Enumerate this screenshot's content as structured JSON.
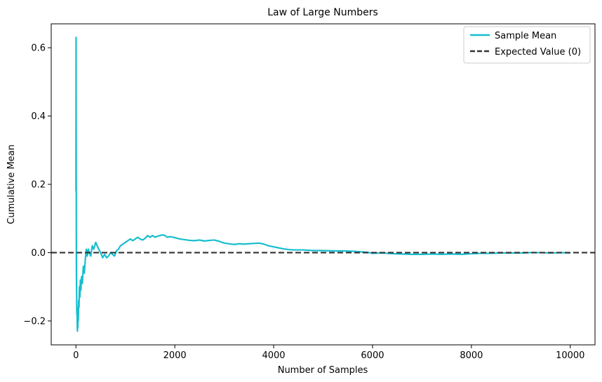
{
  "chart_data": {
    "type": "line",
    "title": "Law of Large Numbers",
    "xlabel": "Number of Samples",
    "ylabel": "Cumulative Mean",
    "xlim": [
      -500,
      10500
    ],
    "ylim": [
      -0.27,
      0.67
    ],
    "xticks": [
      0,
      2000,
      4000,
      6000,
      8000,
      10000
    ],
    "yticks": [
      -0.2,
      0.0,
      0.2,
      0.4,
      0.6
    ],
    "xtick_labels": [
      "0",
      "2000",
      "4000",
      "6000",
      "8000",
      "10000"
    ],
    "ytick_labels": [
      "−0.2",
      "0.0",
      "0.2",
      "0.4",
      "0.6"
    ],
    "grid": false,
    "legend_position": "top-right",
    "series": [
      {
        "name": "Sample Mean",
        "color": "#17becf",
        "style": "solid",
        "points": [
          [
            1,
            0.18
          ],
          [
            2,
            0.55
          ],
          [
            3,
            0.63
          ],
          [
            4,
            0.4
          ],
          [
            6,
            0.25
          ],
          [
            8,
            0.05
          ],
          [
            10,
            -0.05
          ],
          [
            14,
            -0.12
          ],
          [
            18,
            -0.18
          ],
          [
            22,
            -0.16
          ],
          [
            26,
            -0.21
          ],
          [
            30,
            -0.23
          ],
          [
            34,
            -0.19
          ],
          [
            38,
            -0.22
          ],
          [
            42,
            -0.17
          ],
          [
            48,
            -0.2
          ],
          [
            55,
            -0.14
          ],
          [
            62,
            -0.16
          ],
          [
            70,
            -0.1
          ],
          [
            80,
            -0.13
          ],
          [
            90,
            -0.08
          ],
          [
            100,
            -0.11
          ],
          [
            115,
            -0.07
          ],
          [
            130,
            -0.09
          ],
          [
            150,
            -0.04
          ],
          [
            170,
            -0.06
          ],
          [
            190,
            -0.02
          ],
          [
            210,
            0.01
          ],
          [
            230,
            -0.01
          ],
          [
            250,
            0.01
          ],
          [
            270,
            0.0
          ],
          [
            300,
            -0.01
          ],
          [
            330,
            0.02
          ],
          [
            360,
            0.01
          ],
          [
            400,
            0.03
          ],
          [
            430,
            0.02
          ],
          [
            460,
            0.01
          ],
          [
            500,
            0.0
          ],
          [
            540,
            -0.015
          ],
          [
            580,
            -0.005
          ],
          [
            620,
            -0.015
          ],
          [
            660,
            -0.01
          ],
          [
            700,
            0.0
          ],
          [
            740,
            -0.005
          ],
          [
            780,
            -0.01
          ],
          [
            820,
            0.005
          ],
          [
            860,
            0.01
          ],
          [
            900,
            0.02
          ],
          [
            950,
            0.025
          ],
          [
            1000,
            0.03
          ],
          [
            1050,
            0.035
          ],
          [
            1100,
            0.04
          ],
          [
            1150,
            0.035
          ],
          [
            1200,
            0.04
          ],
          [
            1250,
            0.045
          ],
          [
            1300,
            0.04
          ],
          [
            1350,
            0.037
          ],
          [
            1400,
            0.042
          ],
          [
            1450,
            0.05
          ],
          [
            1500,
            0.045
          ],
          [
            1550,
            0.05
          ],
          [
            1600,
            0.045
          ],
          [
            1650,
            0.048
          ],
          [
            1700,
            0.05
          ],
          [
            1750,
            0.052
          ],
          [
            1800,
            0.05
          ],
          [
            1850,
            0.045
          ],
          [
            1900,
            0.047
          ],
          [
            2000,
            0.044
          ],
          [
            2100,
            0.04
          ],
          [
            2200,
            0.038
          ],
          [
            2300,
            0.036
          ],
          [
            2400,
            0.035
          ],
          [
            2500,
            0.037
          ],
          [
            2600,
            0.034
          ],
          [
            2700,
            0.036
          ],
          [
            2800,
            0.037
          ],
          [
            2900,
            0.033
          ],
          [
            3000,
            0.028
          ],
          [
            3100,
            0.026
          ],
          [
            3200,
            0.024
          ],
          [
            3300,
            0.026
          ],
          [
            3400,
            0.025
          ],
          [
            3500,
            0.026
          ],
          [
            3600,
            0.027
          ],
          [
            3700,
            0.028
          ],
          [
            3800,
            0.025
          ],
          [
            3900,
            0.02
          ],
          [
            4000,
            0.017
          ],
          [
            4100,
            0.014
          ],
          [
            4200,
            0.011
          ],
          [
            4300,
            0.009
          ],
          [
            4400,
            0.008
          ],
          [
            4600,
            0.008
          ],
          [
            4800,
            0.006
          ],
          [
            5000,
            0.006
          ],
          [
            5200,
            0.005
          ],
          [
            5400,
            0.005
          ],
          [
            5600,
            0.004
          ],
          [
            5800,
            0.002
          ],
          [
            5900,
            0.001
          ],
          [
            6000,
            -0.002
          ],
          [
            6200,
            -0.001
          ],
          [
            6400,
            -0.003
          ],
          [
            6600,
            -0.004
          ],
          [
            6800,
            -0.005
          ],
          [
            7000,
            -0.005
          ],
          [
            7200,
            -0.004
          ],
          [
            7400,
            -0.005
          ],
          [
            7600,
            -0.004
          ],
          [
            7800,
            -0.005
          ],
          [
            8000,
            -0.003
          ],
          [
            8200,
            -0.002
          ],
          [
            8400,
            -0.002
          ],
          [
            8600,
            -0.001
          ],
          [
            8800,
            -0.001
          ],
          [
            9000,
            -0.001
          ],
          [
            9200,
            0.0
          ],
          [
            9400,
            0.0
          ],
          [
            9600,
            -0.001
          ],
          [
            9800,
            0.0
          ],
          [
            10000,
            -0.001
          ]
        ]
      },
      {
        "name": "Expected Value (0)",
        "color": "#333333",
        "style": "dashed",
        "hline": 0
      }
    ]
  }
}
